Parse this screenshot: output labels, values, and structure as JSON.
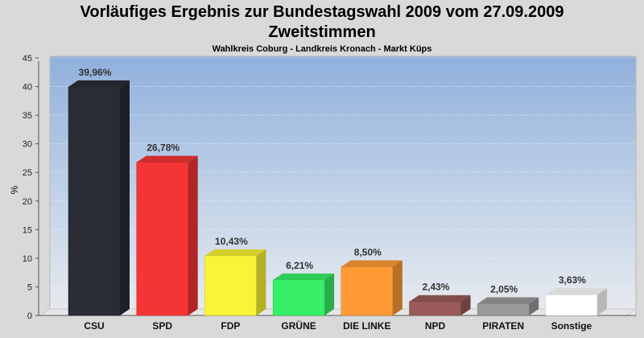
{
  "title_line1": "Vorläufiges Ergebnis zur Bundestagswahl 2009 vom 27.09.2009",
  "title_line2": "Zweitstimmen",
  "subtitle": "Wahlkreis Coburg - Landkreis Kronach - Markt Küps",
  "chart_data": {
    "type": "bar",
    "title": "Vorläufiges Ergebnis zur Bundestagswahl 2009 vom 27.09.2009",
    "subtitle": "Zweitstimmen",
    "xlabel": "",
    "ylabel": "%",
    "ylim": [
      0,
      45
    ],
    "yticks": [
      0,
      5,
      10,
      15,
      20,
      25,
      30,
      35,
      40,
      45
    ],
    "grid": true,
    "categories": [
      "CSU",
      "SPD",
      "FDP",
      "GRÜNE",
      "DIE LINKE",
      "NPD",
      "PIRATEN",
      "Sonstige"
    ],
    "values": [
      39.96,
      26.78,
      10.43,
      6.21,
      8.5,
      2.43,
      2.05,
      3.63
    ],
    "value_labels": [
      "39,96%",
      "26,78%",
      "10,43%",
      "6,21%",
      "8,50%",
      "2,43%",
      "2,05%",
      "3,63%"
    ],
    "colors": [
      "#2a2c35",
      "#f53535",
      "#f8f536",
      "#38f068",
      "#ff9a35",
      "#9a5a5a",
      "#9a9a9a",
      "#ffffff"
    ]
  }
}
